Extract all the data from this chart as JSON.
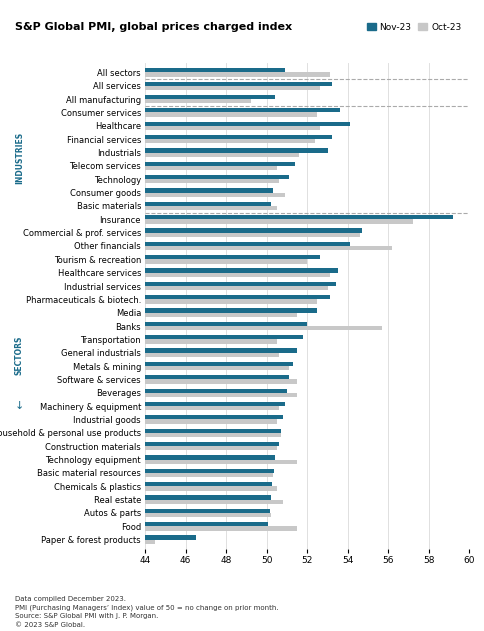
{
  "title": "S&P Global PMI, global prices charged index",
  "legend_nov": "Nov-23",
  "legend_oct": "Oct-23",
  "color_nov": "#1a6b8a",
  "color_oct": "#c8c8c8",
  "xlim": [
    44,
    60
  ],
  "xticks": [
    44,
    46,
    48,
    50,
    52,
    54,
    56,
    58,
    60
  ],
  "footnotes": [
    "Data compiled December 2023.",
    "PMI (Purchasing Managers’ Index) value of 50 = no change on prior month.",
    "Source: S&P Global PMI with J. P. Morgan.",
    "© 2023 S&P Global."
  ],
  "categories": [
    "All sectors",
    "All services",
    "All manufacturing",
    "Consumer services",
    "Healthcare",
    "Financial services",
    "Industrials",
    "Telecom services",
    "Technology",
    "Consumer goods",
    "Basic materials",
    "Insurance",
    "Commercial & prof. services",
    "Other financials",
    "Tourism & recreation",
    "Healthcare services",
    "Industrial services",
    "Pharmaceuticals & biotech.",
    "Media",
    "Banks",
    "Transportation",
    "General industrials",
    "Metals & mining",
    "Software & services",
    "Beverages",
    "Machinery & equipment",
    "Industrial goods",
    "Household & personal use products",
    "Construction materials",
    "Technology equipment",
    "Basic material resources",
    "Chemicals & plastics",
    "Real estate",
    "Autos & parts",
    "Food",
    "Paper & forest products"
  ],
  "nov_values": [
    50.9,
    53.2,
    50.4,
    53.6,
    54.1,
    53.2,
    53.0,
    51.4,
    51.1,
    50.3,
    50.2,
    59.2,
    54.7,
    54.1,
    52.6,
    53.5,
    53.4,
    53.1,
    52.5,
    52.0,
    51.8,
    51.5,
    51.3,
    51.1,
    51.0,
    50.9,
    50.8,
    50.7,
    50.6,
    50.4,
    50.35,
    50.25,
    50.2,
    50.15,
    50.05,
    46.5
  ],
  "oct_values": [
    53.1,
    52.6,
    49.2,
    52.5,
    52.6,
    52.4,
    51.6,
    50.5,
    50.6,
    50.9,
    50.5,
    57.2,
    54.6,
    56.2,
    52.0,
    53.1,
    53.0,
    52.5,
    51.5,
    55.7,
    50.5,
    50.6,
    51.1,
    51.5,
    51.5,
    50.6,
    50.5,
    50.7,
    50.5,
    51.5,
    50.3,
    50.5,
    50.8,
    50.2,
    51.5,
    44.5
  ],
  "bar_height": 0.32,
  "industries_label": "INDUSTRIES",
  "sectors_label": "SECTORS",
  "label_color": "#1a6b8a",
  "separator_color": "#aaaaaa",
  "bg_color": "#ffffff"
}
